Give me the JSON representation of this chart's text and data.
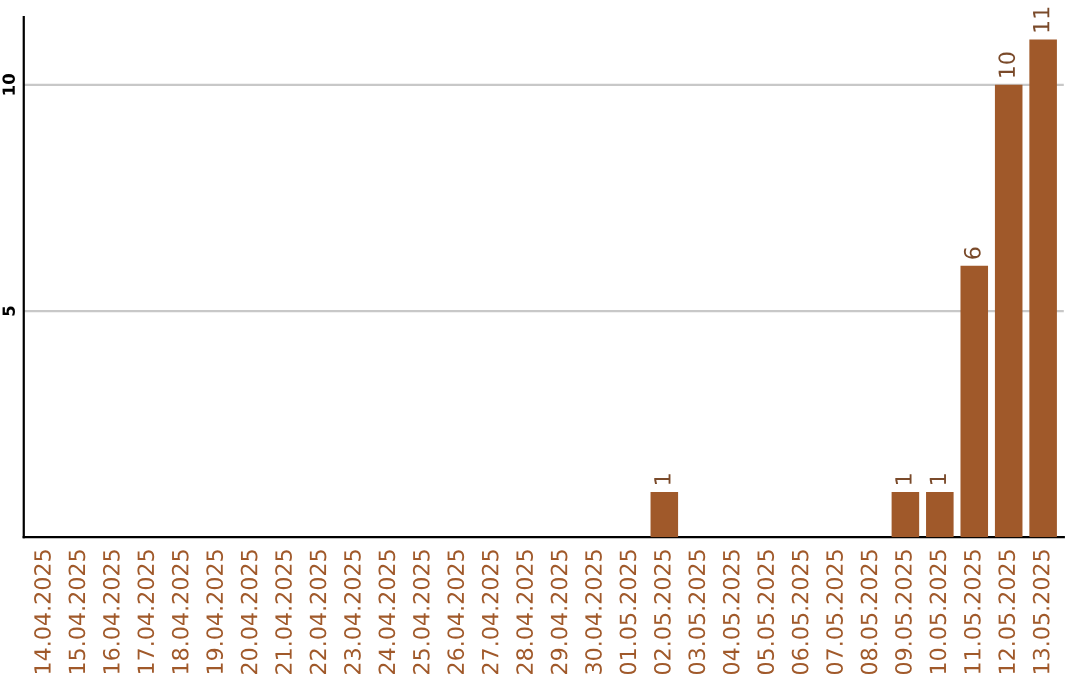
{
  "chart_data": {
    "type": "bar",
    "categories": [
      "14.04.2025",
      "15.04.2025",
      "16.04.2025",
      "17.04.2025",
      "18.04.2025",
      "19.04.2025",
      "20.04.2025",
      "21.04.2025",
      "22.04.2025",
      "23.04.2025",
      "24.04.2025",
      "25.04.2025",
      "26.04.2025",
      "27.04.2025",
      "28.04.2025",
      "29.04.2025",
      "30.04.2025",
      "01.05.2025",
      "02.05.2025",
      "03.05.2025",
      "04.05.2025",
      "05.05.2025",
      "06.05.2025",
      "07.05.2025",
      "08.05.2025",
      "09.05.2025",
      "10.05.2025",
      "11.05.2025",
      "12.05.2025",
      "13.05.2025"
    ],
    "values": [
      0,
      0,
      0,
      0,
      0,
      0,
      0,
      0,
      0,
      0,
      0,
      0,
      0,
      0,
      0,
      0,
      0,
      0,
      1,
      0,
      0,
      0,
      0,
      0,
      0,
      1,
      1,
      6,
      10,
      11
    ],
    "value_labels": [
      null,
      null,
      null,
      null,
      null,
      null,
      null,
      null,
      null,
      null,
      null,
      null,
      null,
      null,
      null,
      null,
      null,
      null,
      "1",
      null,
      null,
      null,
      null,
      null,
      null,
      "1",
      "1",
      "6",
      "10",
      "11"
    ],
    "color": "#a0592a",
    "ylim": [
      0,
      11.5
    ],
    "yticks": [
      5,
      10
    ],
    "grid": "y"
  }
}
